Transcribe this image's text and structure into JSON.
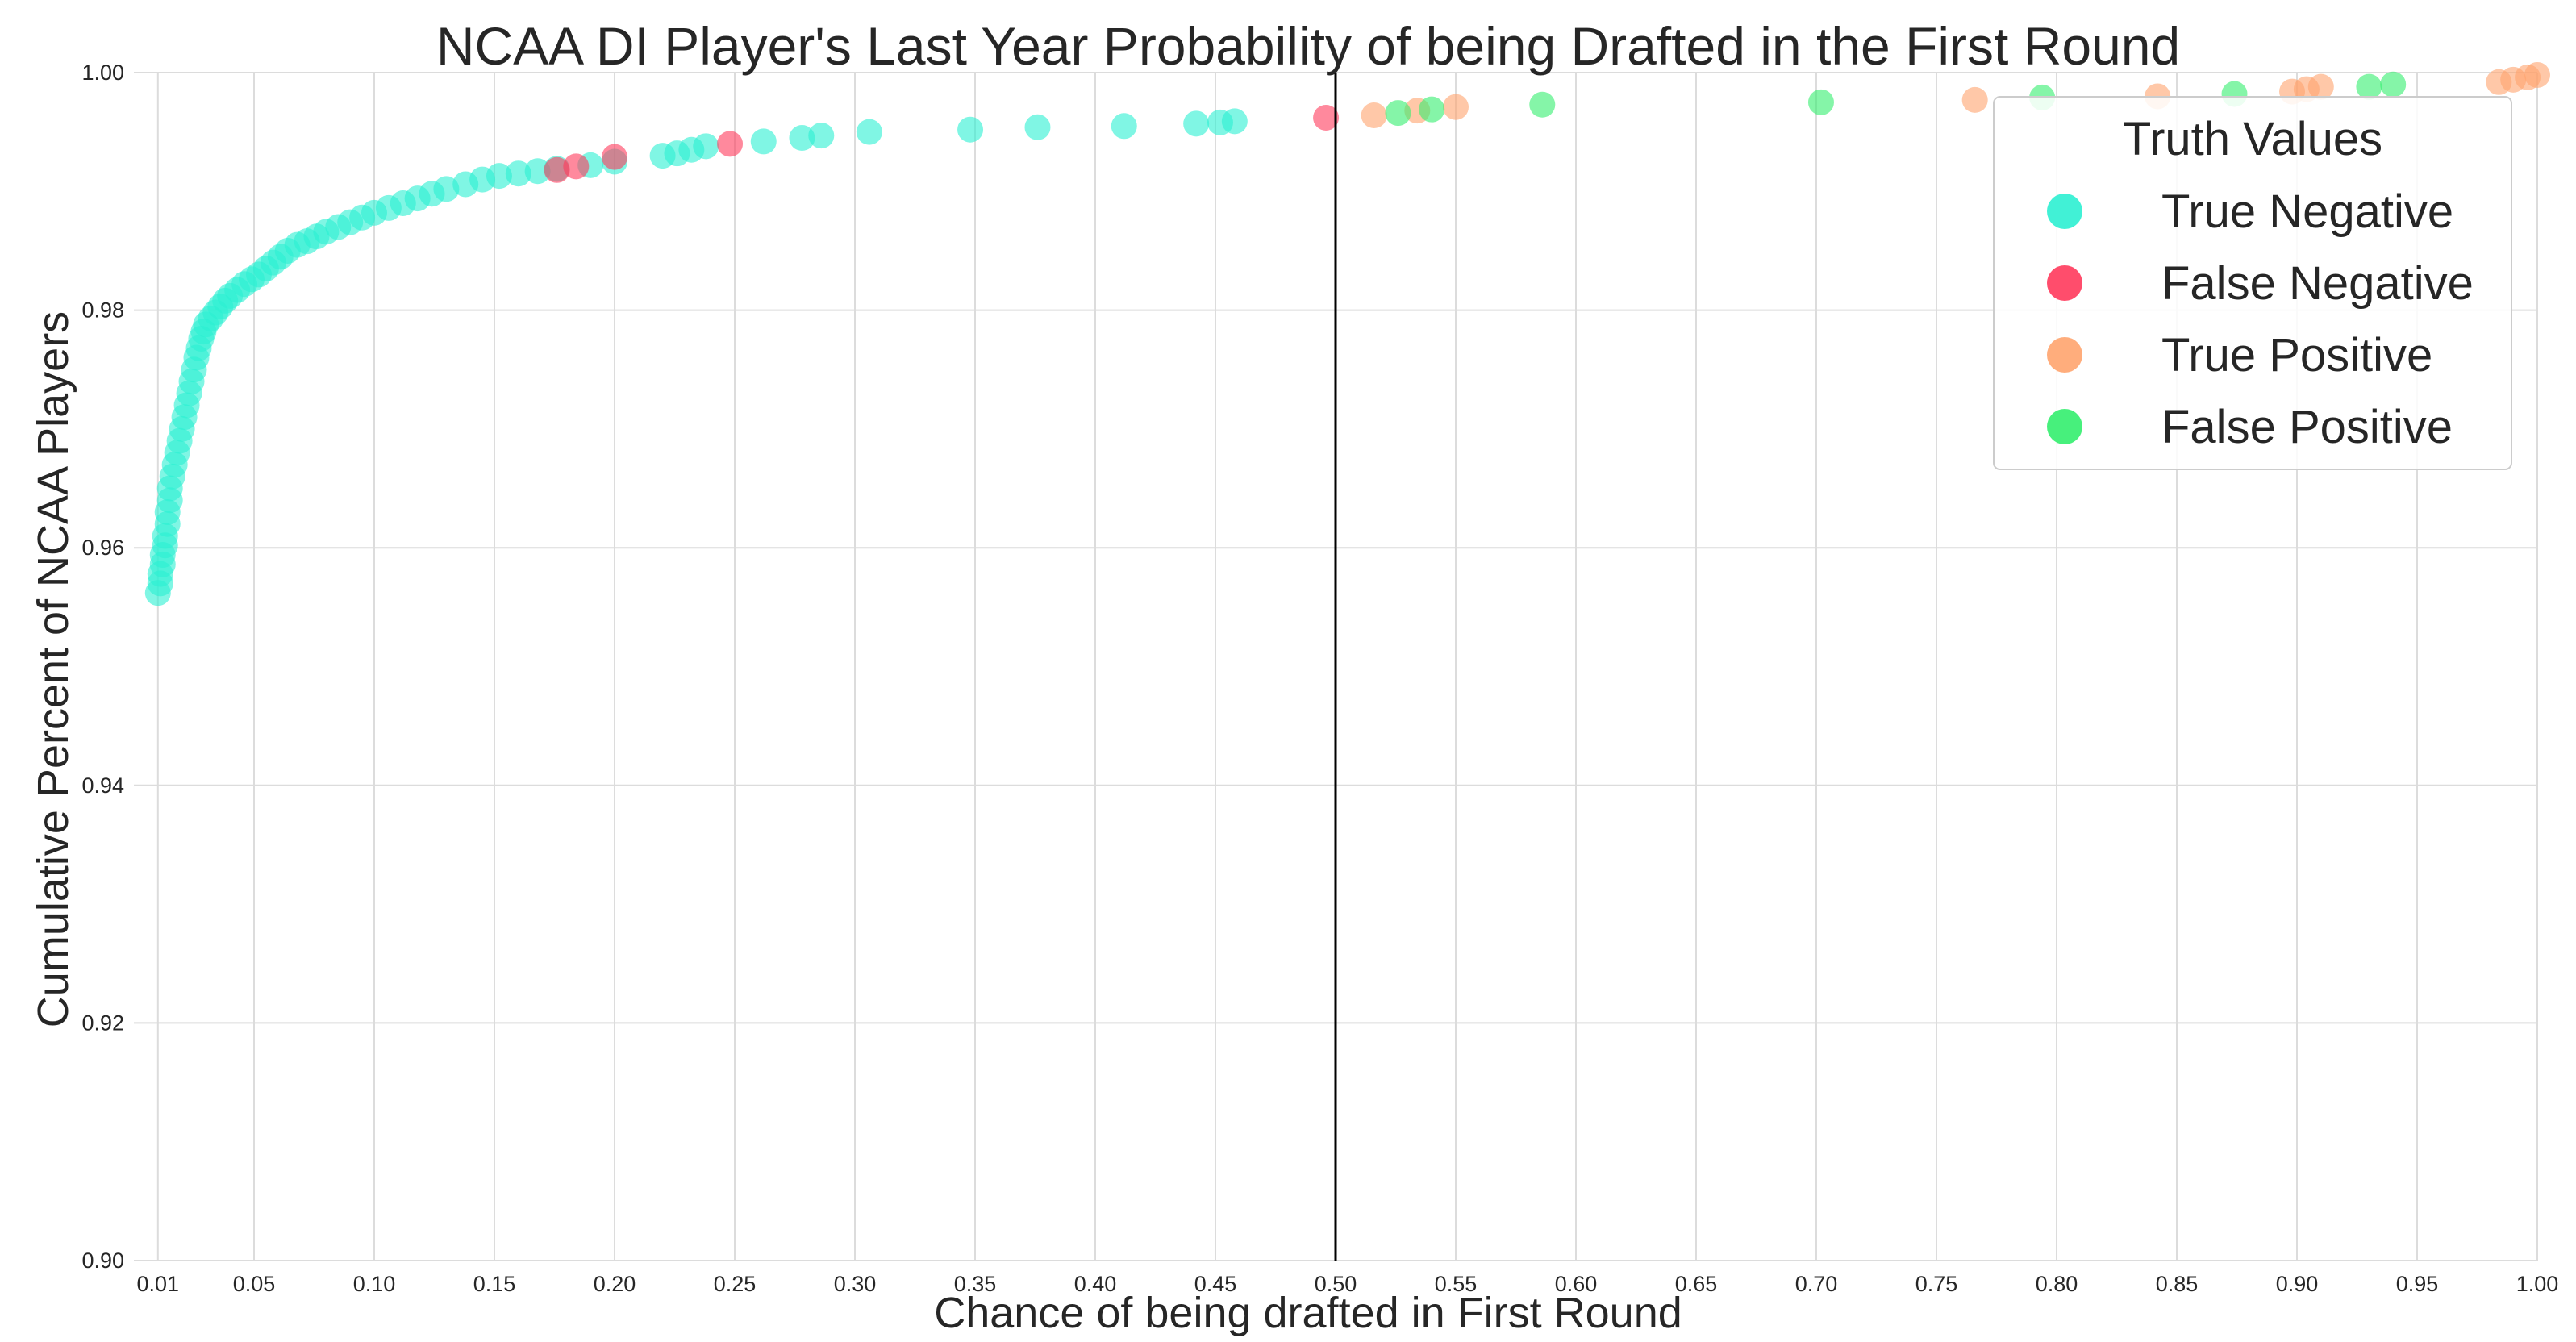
{
  "chart_data": {
    "type": "scatter",
    "title": "NCAA DI Player's Last Year Probability of being Drafted in the First Round",
    "xlabel": "Chance of being drafted in First Round",
    "ylabel": "Cumulative Percent of NCAA Players",
    "xlim": [
      0.0,
      1.0
    ],
    "ylim": [
      0.9,
      1.0
    ],
    "x_ticks": [
      "0.01",
      "0.05",
      "0.10",
      "0.15",
      "0.20",
      "0.25",
      "0.30",
      "0.35",
      "0.40",
      "0.45",
      "0.50",
      "0.55",
      "0.60",
      "0.65",
      "0.70",
      "0.75",
      "0.80",
      "0.85",
      "0.90",
      "0.95",
      "1.00"
    ],
    "y_ticks": [
      "0.90",
      "0.92",
      "0.94",
      "0.96",
      "0.98",
      "1.00"
    ],
    "grid": true,
    "legend_placement": "top-right",
    "legend_title": "Truth Values",
    "threshold_line": {
      "x": 0.5,
      "color": "#000000"
    },
    "series": [
      {
        "name": "True Negative",
        "color": "#2cf0d2",
        "points": [
          [
            0.01,
            0.9562
          ],
          [
            0.011,
            0.957
          ],
          [
            0.011,
            0.9578
          ],
          [
            0.012,
            0.9586
          ],
          [
            0.012,
            0.9594
          ],
          [
            0.013,
            0.9602
          ],
          [
            0.013,
            0.961
          ],
          [
            0.014,
            0.962
          ],
          [
            0.014,
            0.963
          ],
          [
            0.015,
            0.964
          ],
          [
            0.015,
            0.965
          ],
          [
            0.016,
            0.966
          ],
          [
            0.017,
            0.967
          ],
          [
            0.018,
            0.968
          ],
          [
            0.019,
            0.969
          ],
          [
            0.02,
            0.97
          ],
          [
            0.021,
            0.971
          ],
          [
            0.022,
            0.972
          ],
          [
            0.023,
            0.973
          ],
          [
            0.024,
            0.974
          ],
          [
            0.025,
            0.975
          ],
          [
            0.026,
            0.976
          ],
          [
            0.027,
            0.9768
          ],
          [
            0.028,
            0.9776
          ],
          [
            0.029,
            0.9782
          ],
          [
            0.03,
            0.9788
          ],
          [
            0.032,
            0.9793
          ],
          [
            0.034,
            0.9798
          ],
          [
            0.036,
            0.9803
          ],
          [
            0.038,
            0.9808
          ],
          [
            0.04,
            0.9812
          ],
          [
            0.043,
            0.9817
          ],
          [
            0.046,
            0.9822
          ],
          [
            0.049,
            0.9826
          ],
          [
            0.052,
            0.983
          ],
          [
            0.055,
            0.9835
          ],
          [
            0.058,
            0.984
          ],
          [
            0.061,
            0.9845
          ],
          [
            0.064,
            0.985
          ],
          [
            0.068,
            0.9855
          ],
          [
            0.072,
            0.9858
          ],
          [
            0.076,
            0.9862
          ],
          [
            0.08,
            0.9866
          ],
          [
            0.085,
            0.987
          ],
          [
            0.09,
            0.9874
          ],
          [
            0.095,
            0.9878
          ],
          [
            0.1,
            0.9882
          ],
          [
            0.106,
            0.9886
          ],
          [
            0.112,
            0.989
          ],
          [
            0.118,
            0.9894
          ],
          [
            0.124,
            0.9898
          ],
          [
            0.13,
            0.9902
          ],
          [
            0.138,
            0.9906
          ],
          [
            0.145,
            0.991
          ],
          [
            0.152,
            0.9913
          ],
          [
            0.16,
            0.9915
          ],
          [
            0.168,
            0.9917
          ],
          [
            0.176,
            0.9919
          ],
          [
            0.19,
            0.9922
          ],
          [
            0.2,
            0.9925
          ],
          [
            0.22,
            0.993
          ],
          [
            0.226,
            0.9932
          ],
          [
            0.232,
            0.9935
          ],
          [
            0.238,
            0.9938
          ],
          [
            0.262,
            0.9942
          ],
          [
            0.278,
            0.9945
          ],
          [
            0.286,
            0.9947
          ],
          [
            0.306,
            0.995
          ],
          [
            0.348,
            0.9952
          ],
          [
            0.376,
            0.9954
          ],
          [
            0.412,
            0.9955
          ],
          [
            0.442,
            0.9957
          ],
          [
            0.452,
            0.9958
          ],
          [
            0.458,
            0.9959
          ]
        ]
      },
      {
        "name": "False Negative",
        "color": "#ff3a5c",
        "points": [
          [
            0.176,
            0.9918
          ],
          [
            0.184,
            0.9921
          ],
          [
            0.2,
            0.9929
          ],
          [
            0.248,
            0.994
          ],
          [
            0.496,
            0.9962
          ]
        ]
      },
      {
        "name": "True Positive",
        "color": "#ffa46e",
        "points": [
          [
            0.516,
            0.9964
          ],
          [
            0.534,
            0.9968
          ],
          [
            0.55,
            0.9971
          ],
          [
            0.766,
            0.9977
          ],
          [
            0.842,
            0.998
          ],
          [
            0.898,
            0.9984
          ],
          [
            0.904,
            0.9986
          ],
          [
            0.91,
            0.9988
          ],
          [
            0.984,
            0.9992
          ],
          [
            0.99,
            0.9994
          ],
          [
            0.996,
            0.9996
          ],
          [
            1.0,
            0.9998
          ]
        ]
      },
      {
        "name": "False Positive",
        "color": "#33ee6e",
        "points": [
          [
            0.526,
            0.9966
          ],
          [
            0.54,
            0.9969
          ],
          [
            0.586,
            0.9973
          ],
          [
            0.702,
            0.9975
          ],
          [
            0.794,
            0.9979
          ],
          [
            0.874,
            0.9982
          ],
          [
            0.93,
            0.9988
          ],
          [
            0.94,
            0.999
          ]
        ]
      }
    ]
  }
}
